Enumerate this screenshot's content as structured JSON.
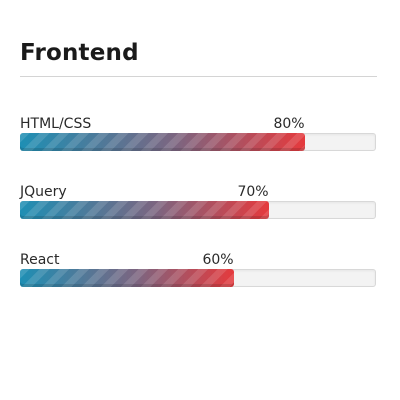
{
  "section": {
    "title": "Frontend"
  },
  "skills": [
    {
      "name": "HTML/CSS",
      "percent_label": "80%",
      "level": 0.8
    },
    {
      "name": "JQuery",
      "percent_label": "70%",
      "level": 0.7
    },
    {
      "name": "React",
      "percent_label": "60%",
      "level": 0.6
    }
  ],
  "colors": {
    "bar_start": "#1e8fb4",
    "bar_end": "#e53a3d",
    "track": "#f3f3f3"
  }
}
